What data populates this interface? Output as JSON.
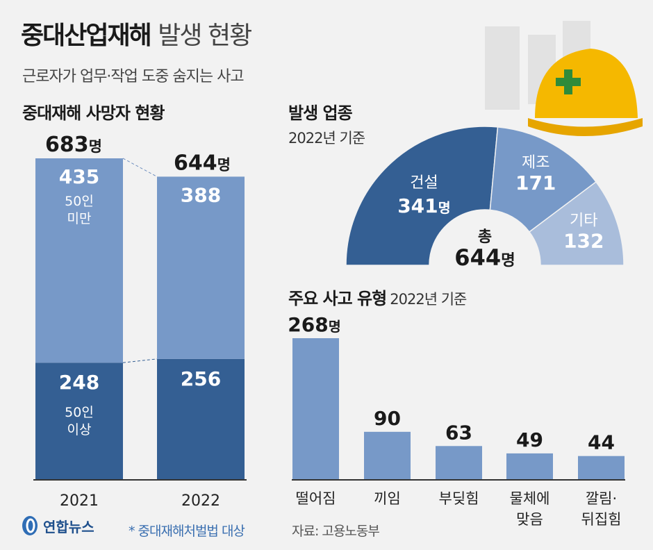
{
  "title": {
    "bold": "중대산업재해",
    "light": "발생 현황"
  },
  "subtitle": "근로자가 업무·작업 도중 숨지는 사고",
  "colors": {
    "dark": "#345f93",
    "medium": "#7799c8",
    "light": "#a9bddb",
    "background": "#f2f2f2",
    "helmet": "#f5b800",
    "cross": "#2e8b3a"
  },
  "chart_data": [
    {
      "type": "bar",
      "stacked": true,
      "title": "중대재해 사망자 현황",
      "categories": [
        "2021",
        "2022"
      ],
      "totals": [
        683,
        644
      ],
      "total_unit": "명",
      "series": [
        {
          "name": "50인 미만 사업장",
          "values": [
            435,
            388
          ]
        },
        {
          "name": "50인 이상 사업장*",
          "values": [
            248,
            256
          ]
        }
      ]
    },
    {
      "type": "pie",
      "variant": "semicircle donut",
      "title": "발생 업종",
      "subtitle": "2022년 기준",
      "categories": [
        "건설",
        "제조",
        "기타"
      ],
      "values": [
        341,
        171,
        132
      ],
      "first_unit": "명",
      "center_label": "총",
      "center_value": "644",
      "center_unit": "명"
    },
    {
      "type": "bar",
      "title": "주요 사고 유형",
      "subtitle": "2022년 기준",
      "categories": [
        "떨어짐",
        "끼임",
        "부딪힘",
        "물체에\n맞음",
        "깔림·\n뒤집힘"
      ],
      "values": [
        268,
        90,
        63,
        49,
        44
      ],
      "first_unit": "명"
    }
  ],
  "footer": {
    "logo": "연합뉴스",
    "note": "* 중대재해처벌법 대상",
    "source": "자료: 고용노동부"
  }
}
